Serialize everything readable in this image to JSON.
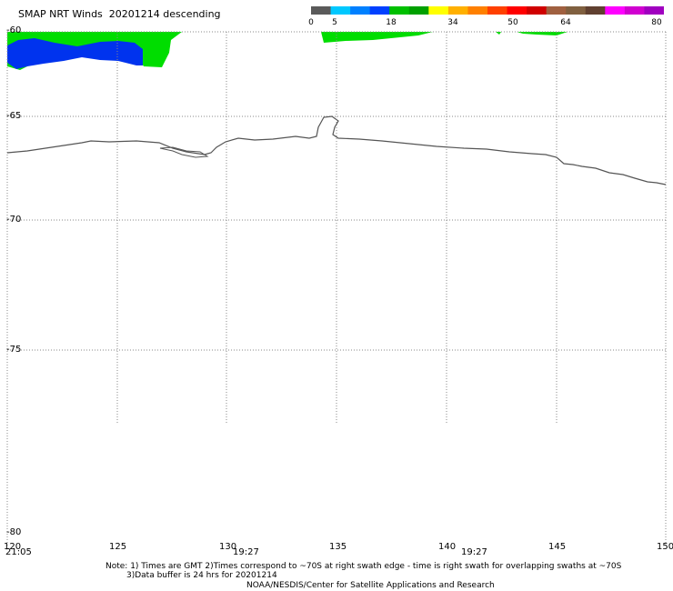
{
  "header": {
    "title": "SMAP NRT Winds  20201214 descending"
  },
  "colorbar": {
    "tick_labels": [
      "0",
      "5",
      "18",
      "34",
      "50",
      "64",
      "80"
    ],
    "segments": [
      "#5a5a5a",
      "#00c8ff",
      "#0080ff",
      "#0040ff",
      "#00c000",
      "#00a000",
      "#ffff00",
      "#ffb000",
      "#ff8000",
      "#ff4000",
      "#ff0000",
      "#d00000",
      "#a06040",
      "#806040",
      "#604030",
      "#ff00ff",
      "#d000d0",
      "#a000c0"
    ]
  },
  "map": {
    "lat_labels": [
      "-60",
      "-65",
      "-70",
      "-75",
      "-80"
    ],
    "lon_labels": [
      "120",
      "125",
      "130",
      "135",
      "140",
      "145",
      "150"
    ],
    "time_labels": [
      "21:05",
      "19:27",
      "19:27"
    ],
    "colors": {
      "land_green": "#00dd00",
      "wind_blue": "#0033ee",
      "coast": "#555555",
      "grid": "#888888"
    }
  },
  "footer": {
    "note_line1": "Note: 1) Times are GMT 2)Times correspond to ~70S at right swath edge - time is right swath for overlapping swaths at ~70S",
    "note_line2": "3)Data buffer is 24 hrs for 20201214",
    "credit": "NOAA/NESDIS/Center for Satellite Applications and Research"
  }
}
